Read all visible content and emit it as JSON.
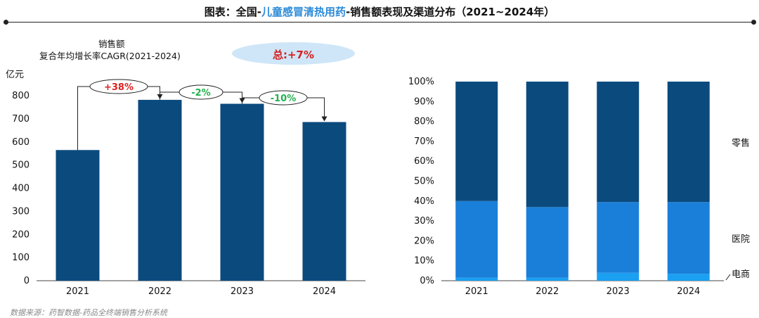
{
  "title": {
    "prefix": "图表：全国-",
    "highlight": "儿童感冒清热用药",
    "suffix": "-销售额表现及渠道分布（2021~2024年）"
  },
  "left_chart_header": {
    "line1": "销售额",
    "line2": "复合年均增长率CAGR(2021-2024)",
    "total_cagr": "总:+7%"
  },
  "source": "数据来源：药智数据-药品全终端销售分析系统",
  "chart_data": [
    {
      "type": "bar",
      "title": "",
      "ylabel": "亿元",
      "categories": [
        "2021",
        "2022",
        "2023",
        "2024"
      ],
      "values": [
        565,
        782,
        765,
        686
      ],
      "ylim": [
        0,
        800
      ],
      "yticks": [
        "0",
        "100",
        "200",
        "300",
        "400",
        "500",
        "600",
        "700",
        "800"
      ],
      "color": "#0b4a7d",
      "annotations": [
        "+38%",
        "-2%",
        "-10%"
      ],
      "annotation_colors": [
        "#e02020",
        "#22b14c",
        "#22b14c"
      ]
    },
    {
      "type": "bar",
      "stacked": true,
      "percent": true,
      "categories": [
        "2021",
        "2022",
        "2023",
        "2024"
      ],
      "series": [
        {
          "name": "电商",
          "values": [
            1.5,
            1.5,
            4,
            3.5
          ],
          "color": "#1ba0f2"
        },
        {
          "name": "医院",
          "values": [
            38.5,
            35.5,
            35.5,
            36
          ],
          "color": "#1a7fd9"
        },
        {
          "name": "零售",
          "values": [
            60,
            63,
            60.5,
            60.5
          ],
          "color": "#0b4a7d"
        }
      ],
      "ylim": [
        0,
        100
      ],
      "yticks": [
        "0%",
        "10%",
        "20%",
        "30%",
        "40%",
        "50%",
        "60%",
        "70%",
        "80%",
        "90%",
        "100%"
      ]
    }
  ]
}
